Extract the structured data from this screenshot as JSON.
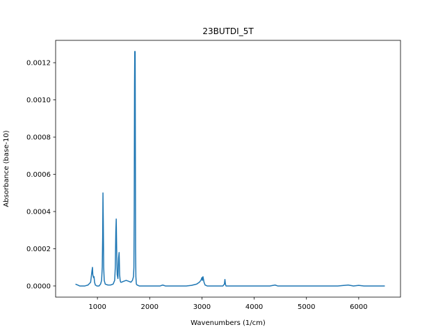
{
  "chart_data": {
    "type": "line",
    "title": "23BUTDI_5T",
    "xlabel": "Wavenumbers (1/cm)",
    "ylabel": "Absorbance (base-10)",
    "xlim": [
      200,
      6800
    ],
    "ylim": [
      -6e-05,
      0.00132
    ],
    "xticks": [
      1000,
      2000,
      3000,
      4000,
      5000,
      6000
    ],
    "yticks": [
      0.0,
      0.0002,
      0.0004,
      0.0006,
      0.0008,
      0.001,
      0.0012
    ],
    "ytick_labels": [
      "0.0000",
      "0.0002",
      "0.0004",
      "0.0006",
      "0.0008",
      "0.0010",
      "0.0012"
    ],
    "grid": false,
    "line_color": "#1f77b4",
    "series": [
      {
        "x": [
          580,
          620,
          660,
          700,
          760,
          820,
          870,
          895,
          905,
          912,
          925,
          935,
          945,
          960,
          990,
          1030,
          1060,
          1080,
          1092,
          1100,
          1106,
          1112,
          1120,
          1130,
          1150,
          1200,
          1250,
          1300,
          1330,
          1342,
          1352,
          1360,
          1368,
          1378,
          1392,
          1405,
          1415,
          1425,
          1435,
          1445,
          1460,
          1500,
          1550,
          1600,
          1640,
          1670,
          1690,
          1698,
          1704,
          1710,
          1714,
          1718,
          1722,
          1726,
          1730,
          1736,
          1745,
          1760,
          1800,
          1900,
          2000,
          2100,
          2200,
          2250,
          2300,
          2400,
          2500,
          2600,
          2700,
          2800,
          2900,
          2950,
          2980,
          3000,
          3010,
          3020,
          3040,
          3060,
          3100,
          3200,
          3300,
          3400,
          3430,
          3440,
          3450,
          3460,
          3480,
          3550,
          3700,
          3900,
          4100,
          4300,
          4400,
          4450,
          4500,
          4700,
          5000,
          5300,
          5600,
          5800,
          5900,
          6000,
          6100,
          6300,
          6500
        ],
        "y": [
          1e-05,
          5e-06,
          0.0,
          0.0,
          0.0,
          5e-06,
          2e-05,
          8e-05,
          0.0001,
          6e-05,
          4.5e-05,
          5e-05,
          2e-05,
          5e-06,
          0.0,
          0.0,
          1e-05,
          3e-05,
          0.0001,
          0.00026,
          0.0005,
          0.00035,
          0.0001,
          3e-05,
          1e-05,
          5e-06,
          5e-06,
          1e-05,
          3e-05,
          0.0001,
          0.00029,
          0.00036,
          0.0002,
          6e-05,
          4e-05,
          0.00015,
          0.00018,
          6e-05,
          3e-05,
          2e-05,
          2e-05,
          2.5e-05,
          3e-05,
          2.5e-05,
          2e-05,
          3e-05,
          5e-05,
          0.0001,
          0.0004,
          0.00108,
          0.00126,
          0.0009,
          0.00126,
          0.00075,
          0.0002,
          5e-05,
          1e-05,
          5e-06,
          0.0,
          0.0,
          0.0,
          0.0,
          0.0,
          5e-06,
          0.0,
          0.0,
          0.0,
          0.0,
          0.0,
          3e-06,
          1e-05,
          2e-05,
          3e-05,
          4.5e-05,
          3e-05,
          5e-05,
          2e-05,
          5e-06,
          0.0,
          0.0,
          0.0,
          0.0,
          1e-05,
          3.5e-05,
          1e-05,
          0.0,
          0.0,
          0.0,
          0.0,
          0.0,
          0.0,
          0.0,
          5e-06,
          0.0,
          0.0,
          0.0,
          0.0,
          0.0,
          0.0,
          5e-06,
          0.0,
          3e-06,
          0.0,
          0.0,
          0.0
        ]
      }
    ]
  }
}
